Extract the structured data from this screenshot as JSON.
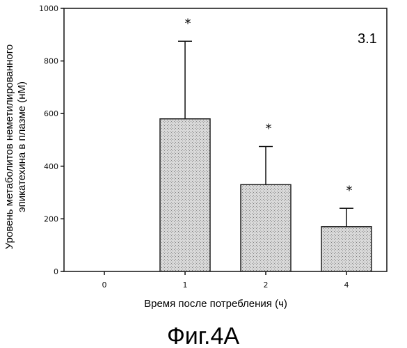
{
  "chart_data": {
    "type": "bar",
    "categories": [
      "0",
      "1",
      "2",
      "4"
    ],
    "values": [
      0,
      580,
      330,
      170
    ],
    "errors": [
      0,
      295,
      145,
      70
    ],
    "significance": [
      "",
      "*",
      "*",
      "*"
    ],
    "ylim": [
      0,
      1000
    ],
    "yticks": [
      "0",
      "200",
      "400",
      "600",
      "800",
      "1000"
    ],
    "xlabel": "Время после потребления (ч)",
    "ylabel_line1": "Уровень метаболитов неметилированного",
    "ylabel_line2": "эпикатехина в плазме (нМ)",
    "panel_label": "3.1",
    "grid": false,
    "legend": "none"
  },
  "caption": "Фиг.4А",
  "colors": {
    "bar_fill": "#d4d4d4",
    "bar_stroke": "#222222"
  }
}
